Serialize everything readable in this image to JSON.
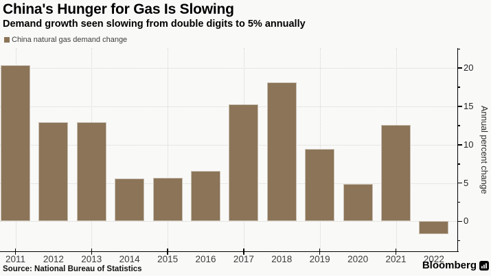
{
  "header": {
    "title": "China's Hunger for Gas Is Slowing",
    "subtitle": "Demand growth seen slowing from double digits to 5% annually"
  },
  "legend": {
    "label": "China natural gas demand change"
  },
  "footer": {
    "source": "Source: National Bureau of Statistics",
    "brand": "Bloomberg"
  },
  "colors": {
    "bar": "#8b7458",
    "background": "#f9f9f8",
    "grid": "#d6d4cf",
    "axis": "#000000"
  },
  "chart_data": {
    "type": "bar",
    "title": "China's Hunger for Gas Is Slowing",
    "subtitle": "Demand growth seen slowing from double digits to 5% annually",
    "series_label": "China natural gas demand change",
    "categories": [
      "2011",
      "2012",
      "2013",
      "2014",
      "2015",
      "2016",
      "2017",
      "2018",
      "2019",
      "2020",
      "2021",
      "2022"
    ],
    "values": [
      20.4,
      12.9,
      12.9,
      5.6,
      5.7,
      6.6,
      15.3,
      18.1,
      9.4,
      4.9,
      12.6,
      -1.7
    ],
    "xlabel": "",
    "ylabel": "Annual percent change",
    "yticks": [
      0,
      5,
      10,
      15,
      20
    ],
    "minor_yticks": [
      -2.5,
      2.5,
      7.5,
      12.5,
      17.5,
      22.5
    ],
    "ylim": [
      -3.85,
      22.6
    ],
    "grid": true,
    "vertical_grid_categories": [
      "2011",
      "2013",
      "2015",
      "2017",
      "2019",
      "2021"
    ],
    "legend_position": "top-left",
    "axis_side": "right",
    "source": "Source: National Bureau of Statistics",
    "brand": "Bloomberg"
  }
}
